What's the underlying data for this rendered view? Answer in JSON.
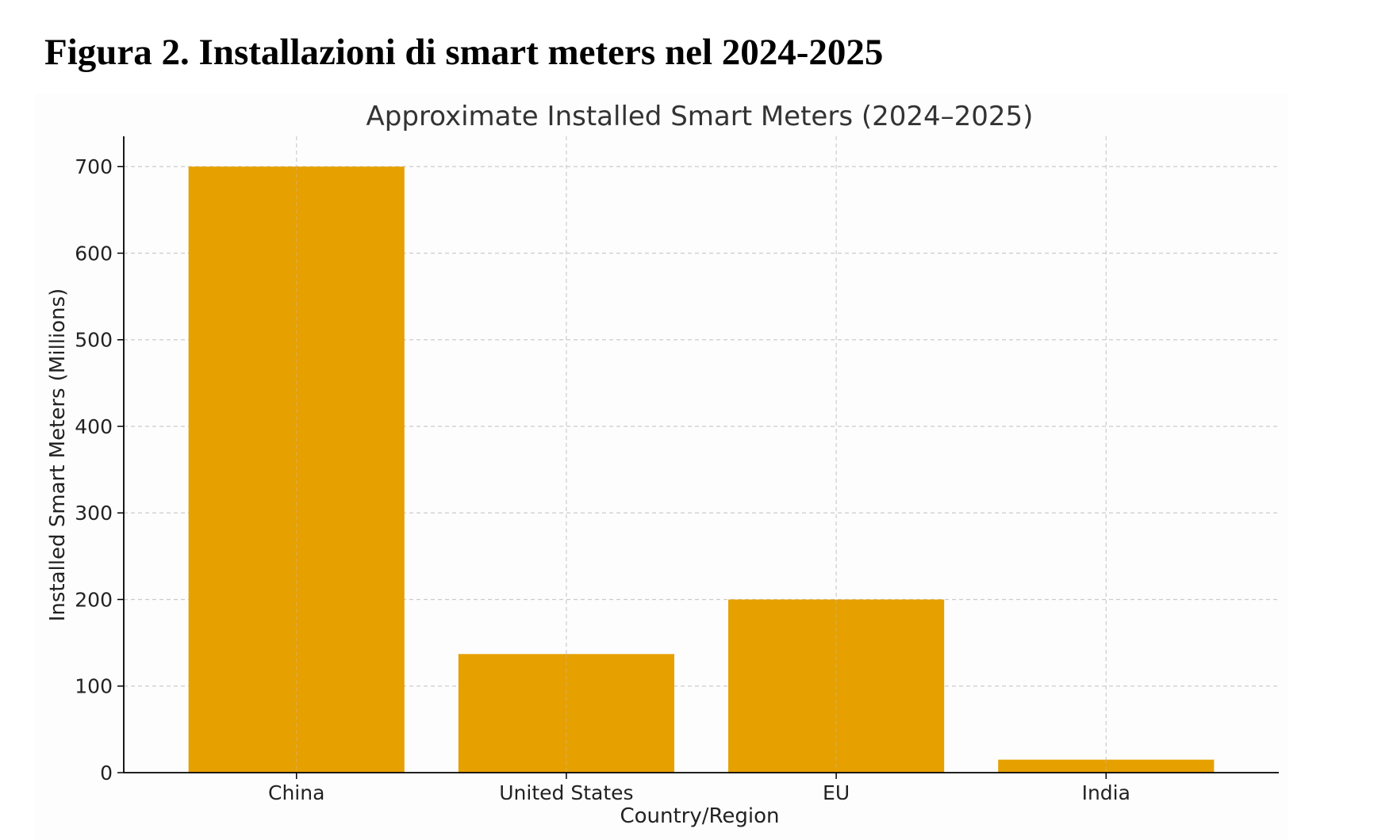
{
  "figure": {
    "heading": "Figura 2. Installazioni di smart meters nel 2024-2025"
  },
  "chart_data": {
    "type": "bar",
    "title": "Approximate Installed Smart Meters (2024–2025)",
    "xlabel": "Country/Region",
    "ylabel": "Installed Smart Meters (Millions)",
    "categories": [
      "China",
      "United States",
      "EU",
      "India"
    ],
    "values": [
      700,
      137,
      200,
      15
    ],
    "ylim": [
      0,
      735
    ],
    "yticks": [
      0,
      100,
      200,
      300,
      400,
      500,
      600,
      700
    ],
    "grid": true,
    "bar_color": "#e6a000",
    "axis_color": "#000000",
    "grid_color": "#cccccc",
    "text_color": "#222222"
  }
}
